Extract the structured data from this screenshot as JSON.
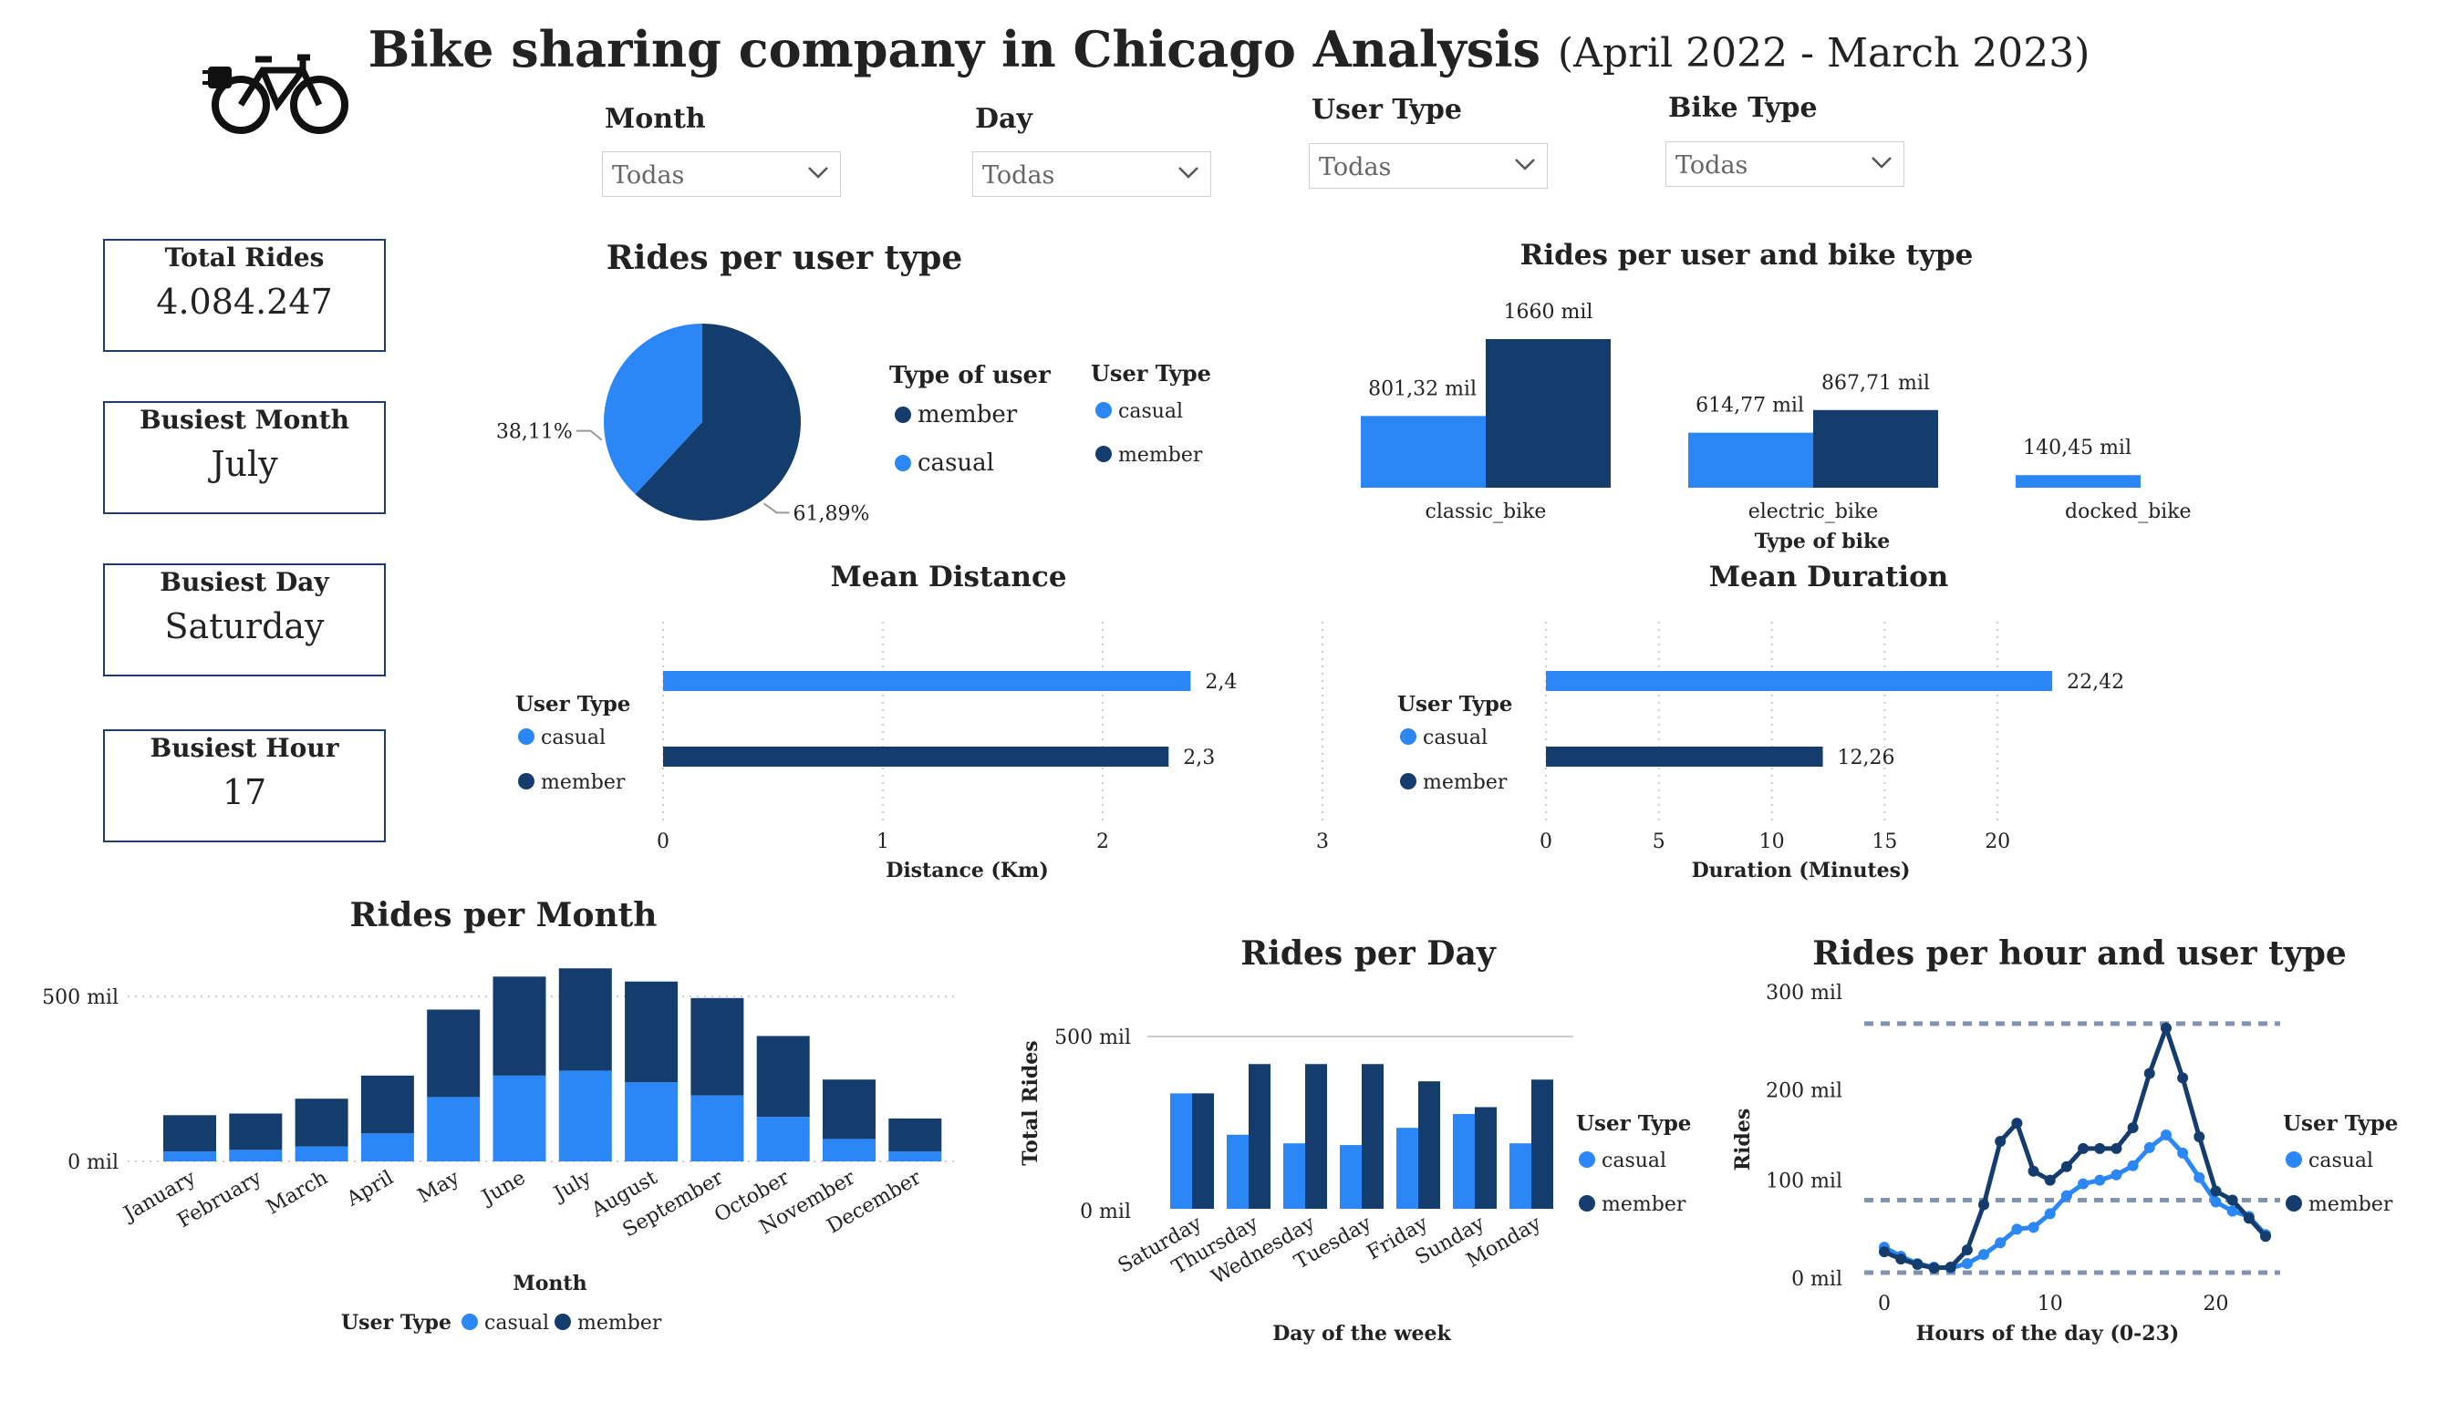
{
  "page": {
    "title": "Bike sharing company in Chicago Analysis",
    "subtitle": "(April 2022 - March 2023)"
  },
  "colors": {
    "casual": "#2b87f5",
    "member": "#143d6e",
    "border": "#1f3d6b"
  },
  "icons": {
    "logo": "electric-bike-icon",
    "dropdown": "chevron-down-icon"
  },
  "filters": [
    {
      "label": "Month",
      "value": "Todas"
    },
    {
      "label": "Day",
      "value": "Todas"
    },
    {
      "label": "User Type",
      "value": "Todas"
    },
    {
      "label": "Bike Type",
      "value": "Todas"
    }
  ],
  "kpis": [
    {
      "label": "Total Rides",
      "value": "4.084.247"
    },
    {
      "label": "Busiest Month",
      "value": "July"
    },
    {
      "label": "Busiest Day",
      "value": "Saturday"
    },
    {
      "label": "Busiest Hour",
      "value": "17"
    }
  ],
  "chart_data": [
    {
      "id": "pie",
      "type": "pie",
      "title": "Rides per user type",
      "slices": [
        {
          "name": "casual",
          "value": 38.11,
          "label": "38,11%"
        },
        {
          "name": "member",
          "value": 61.89,
          "label": "61,89%"
        }
      ],
      "legends": [
        {
          "title": "Type of user",
          "items": [
            "member",
            "casual"
          ]
        },
        {
          "title": "User Type",
          "items": [
            "casual",
            "member"
          ]
        }
      ]
    },
    {
      "id": "bike",
      "type": "bar",
      "title": "Rides per user and bike type",
      "xlabel": "Type of bike",
      "categories": [
        "classic_bike",
        "electric_bike",
        "docked_bike"
      ],
      "series": [
        {
          "name": "casual",
          "values": [
            801.32,
            614.77,
            140.45
          ],
          "labels": [
            "801,32 mil",
            "614,77 mil",
            "140,45 mil"
          ]
        },
        {
          "name": "member",
          "values": [
            1660,
            867.71,
            null
          ],
          "labels": [
            "1660 mil",
            "867,71 mil",
            ""
          ]
        }
      ]
    },
    {
      "id": "distance",
      "type": "bar",
      "title": "Mean Distance",
      "orientation": "horizontal",
      "xlabel": "Distance (Km)",
      "xlim": [
        0,
        3
      ],
      "ticks": [
        "0",
        "1",
        "2",
        "3"
      ],
      "legend_title": "User Type",
      "series": [
        {
          "name": "casual",
          "value": 2.4,
          "label": "2,4"
        },
        {
          "name": "member",
          "value": 2.3,
          "label": "2,3"
        }
      ]
    },
    {
      "id": "duration",
      "type": "bar",
      "title": "Mean Duration",
      "orientation": "horizontal",
      "xlabel": "Duration (Minutes)",
      "xlim": [
        0,
        25
      ],
      "ticks": [
        "0",
        "5",
        "10",
        "15",
        "20"
      ],
      "legend_title": "User Type",
      "series": [
        {
          "name": "casual",
          "value": 22.42,
          "label": "22,42"
        },
        {
          "name": "member",
          "value": 12.26,
          "label": "12,26"
        }
      ]
    },
    {
      "id": "month",
      "type": "bar",
      "stacked": true,
      "title": "Rides per Month",
      "xlabel": "Month",
      "ylim": [
        0,
        600
      ],
      "yticks": [
        "0 mil",
        "500 mil"
      ],
      "legend_title": "User Type",
      "categories": [
        "January",
        "February",
        "March",
        "April",
        "May",
        "June",
        "July",
        "August",
        "September",
        "October",
        "November",
        "December"
      ],
      "series": [
        {
          "name": "casual",
          "values": [
            30,
            35,
            45,
            85,
            195,
            260,
            275,
            240,
            200,
            135,
            68,
            30
          ]
        },
        {
          "name": "member",
          "values": [
            110,
            110,
            145,
            175,
            265,
            300,
            310,
            305,
            295,
            245,
            180,
            100
          ]
        }
      ]
    },
    {
      "id": "day",
      "type": "bar",
      "title": "Rides per Day",
      "xlabel": "Day of the week",
      "ylabel": "Total Rides",
      "ylim": [
        0,
        500
      ],
      "yticks": [
        "0 mil",
        "500 mil"
      ],
      "legend_title": "User Type",
      "categories": [
        "Saturday",
        "Thursday",
        "Wednesday",
        "Tuesday",
        "Friday",
        "Sunday",
        "Monday"
      ],
      "series": [
        {
          "name": "casual",
          "values": [
            335,
            215,
            190,
            185,
            235,
            275,
            190
          ]
        },
        {
          "name": "member",
          "values": [
            335,
            420,
            420,
            420,
            370,
            295,
            375
          ]
        }
      ]
    },
    {
      "id": "hour",
      "type": "line",
      "title": "Rides per hour and user type",
      "xlabel": "Hours of the day (0-23)",
      "ylabel": "Rides",
      "ylim": [
        0,
        300
      ],
      "yticks": [
        "0 mil",
        "100 mil",
        "200 mil",
        "300 mil"
      ],
      "xticks": [
        "0",
        "10",
        "20"
      ],
      "legend_title": "User Type",
      "x": [
        0,
        1,
        2,
        3,
        4,
        5,
        6,
        7,
        8,
        9,
        10,
        11,
        12,
        13,
        14,
        15,
        16,
        17,
        18,
        19,
        20,
        21,
        22,
        23
      ],
      "series": [
        {
          "name": "casual",
          "values": [
            28,
            18,
            10,
            6,
            5,
            10,
            20,
            33,
            48,
            50,
            65,
            85,
            98,
            102,
            108,
            118,
            138,
            152,
            132,
            105,
            78,
            68,
            62,
            42
          ]
        },
        {
          "name": "member",
          "values": [
            23,
            15,
            9,
            5,
            6,
            25,
            75,
            145,
            165,
            112,
            102,
            117,
            137,
            137,
            137,
            160,
            220,
            270,
            215,
            150,
            90,
            80,
            60,
            40
          ]
        }
      ]
    }
  ]
}
